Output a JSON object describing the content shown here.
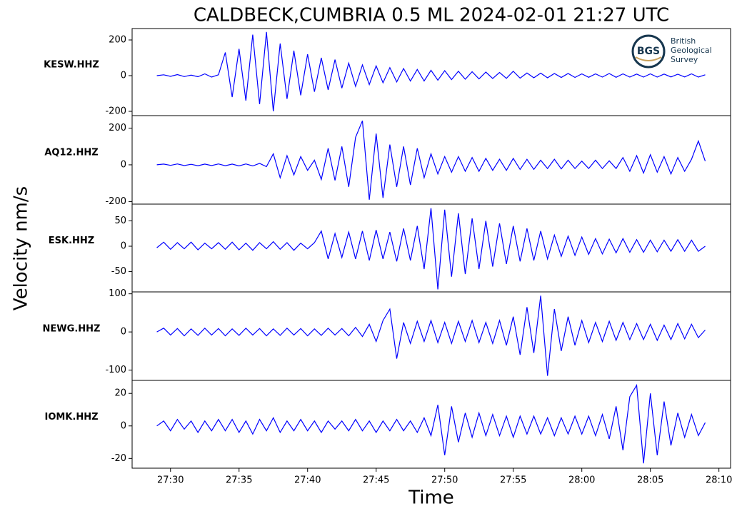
{
  "chart_data": {
    "type": "line",
    "title": "CALDBECK,CUMBRIA 0.5 ML   2024-02-01 21:27 UTC",
    "xlabel": "Time",
    "ylabel": "Velocity nm/s",
    "xlim": [
      27.2,
      70.85
    ],
    "xticks": [
      {
        "value": 30,
        "label": "27:30"
      },
      {
        "value": 35,
        "label": "27:35"
      },
      {
        "value": 40,
        "label": "27:40"
      },
      {
        "value": 45,
        "label": "27:45"
      },
      {
        "value": 50,
        "label": "27:50"
      },
      {
        "value": 55,
        "label": "27:55"
      },
      {
        "value": 60,
        "label": "28:00"
      },
      {
        "value": 65,
        "label": "28:05"
      },
      {
        "value": 70,
        "label": "28:10"
      }
    ],
    "x": [
      29,
      29.5,
      30,
      30.5,
      31,
      31.5,
      32,
      32.5,
      33,
      33.5,
      34,
      34.5,
      35,
      35.5,
      36,
      36.5,
      37,
      37.5,
      38,
      38.5,
      39,
      39.5,
      40,
      40.5,
      41,
      41.5,
      42,
      42.5,
      43,
      43.5,
      44,
      44.5,
      45,
      45.5,
      46,
      46.5,
      47,
      47.5,
      48,
      48.5,
      49,
      49.5,
      50,
      50.5,
      51,
      51.5,
      52,
      52.5,
      53,
      53.5,
      54,
      54.5,
      55,
      55.5,
      56,
      56.5,
      57,
      57.5,
      58,
      58.5,
      59,
      59.5,
      60,
      60.5,
      61,
      61.5,
      62,
      62.5,
      63,
      63.5,
      64,
      64.5,
      65,
      65.5,
      66,
      66.5,
      67,
      67.5,
      68,
      68.5,
      69
    ],
    "series": [
      {
        "name": "KESW.HHZ",
        "color": "#0000ff",
        "ylim": [
          -224,
          264
        ],
        "yticks": [
          -200,
          0,
          200
        ],
        "values": [
          0,
          5,
          -4,
          6,
          -5,
          3,
          -6,
          10,
          -8,
          5,
          130,
          -120,
          150,
          -140,
          230,
          -160,
          245,
          -200,
          180,
          -130,
          140,
          -110,
          120,
          -90,
          100,
          -80,
          90,
          -70,
          70,
          -60,
          60,
          -50,
          55,
          -40,
          45,
          -35,
          40,
          -30,
          35,
          -30,
          30,
          -25,
          28,
          -22,
          25,
          -20,
          22,
          -18,
          20,
          -16,
          18,
          -15,
          25,
          -14,
          15,
          -12,
          14,
          -12,
          12,
          -10,
          12,
          -10,
          10,
          -9,
          10,
          -8,
          12,
          -9,
          10,
          -8,
          9,
          -8,
          10,
          -8,
          9,
          -7,
          8,
          -7,
          10,
          -8,
          5
        ]
      },
      {
        "name": "AQ12.HHZ",
        "color": "#0000ff",
        "ylim": [
          -214,
          268
        ],
        "yticks": [
          -200,
          0,
          200
        ],
        "values": [
          0,
          4,
          -3,
          5,
          -4,
          3,
          -5,
          4,
          -4,
          5,
          -5,
          4,
          -6,
          5,
          -6,
          8,
          -10,
          60,
          -70,
          50,
          -55,
          45,
          -30,
          25,
          -80,
          90,
          -85,
          100,
          -120,
          150,
          240,
          -190,
          170,
          -180,
          110,
          -120,
          100,
          -110,
          90,
          -70,
          60,
          -50,
          45,
          -40,
          45,
          -35,
          40,
          -35,
          35,
          -30,
          30,
          -30,
          35,
          -25,
          30,
          -25,
          25,
          -20,
          30,
          -22,
          25,
          -20,
          20,
          -20,
          25,
          -20,
          22,
          -20,
          40,
          -35,
          50,
          -45,
          55,
          -40,
          45,
          -50,
          40,
          -35,
          30,
          130,
          20
        ]
      },
      {
        "name": "ESK.HHZ",
        "color": "#0000ff",
        "ylim": [
          -90,
          83
        ],
        "yticks": [
          -50,
          0,
          50
        ],
        "values": [
          -3,
          8,
          -6,
          7,
          -5,
          8,
          -7,
          6,
          -5,
          7,
          -6,
          8,
          -7,
          6,
          -8,
          7,
          -5,
          9,
          -6,
          7,
          -8,
          6,
          -5,
          7,
          30,
          -25,
          25,
          -22,
          28,
          -25,
          30,
          -28,
          32,
          -25,
          28,
          -30,
          35,
          -28,
          40,
          -45,
          75,
          -85,
          72,
          -60,
          65,
          -55,
          55,
          -45,
          50,
          -40,
          45,
          -35,
          40,
          -30,
          35,
          -28,
          30,
          -25,
          22,
          -20,
          20,
          -18,
          18,
          -16,
          15,
          -15,
          14,
          -13,
          15,
          -12,
          13,
          -12,
          12,
          -11,
          12,
          -10,
          13,
          -10,
          12,
          -10,
          0
        ]
      },
      {
        "name": "NEWG.HHZ",
        "color": "#0000ff",
        "ylim": [
          -127,
          105
        ],
        "yticks": [
          -100,
          0,
          100
        ],
        "values": [
          0,
          10,
          -8,
          9,
          -10,
          8,
          -9,
          10,
          -8,
          9,
          -10,
          8,
          -9,
          10,
          -8,
          9,
          -10,
          8,
          -9,
          10,
          -8,
          9,
          -10,
          8,
          -9,
          10,
          -8,
          9,
          -10,
          12,
          -12,
          20,
          -25,
          30,
          60,
          -70,
          25,
          -30,
          28,
          -25,
          30,
          -28,
          25,
          -30,
          28,
          -25,
          30,
          -28,
          25,
          -30,
          30,
          -35,
          40,
          -60,
          65,
          -55,
          95,
          -115,
          60,
          -50,
          40,
          -35,
          30,
          -28,
          25,
          -25,
          28,
          -22,
          25,
          -20,
          22,
          -20,
          20,
          -22,
          18,
          -20,
          22,
          -18,
          20,
          -15,
          5
        ]
      },
      {
        "name": "IOMK.HHZ",
        "color": "#0000ff",
        "ylim": [
          -26,
          28
        ],
        "yticks": [
          -20,
          0,
          20
        ],
        "values": [
          0,
          3,
          -3,
          4,
          -2,
          3,
          -4,
          3,
          -3,
          4,
          -3,
          4,
          -4,
          3,
          -5,
          4,
          -3,
          5,
          -4,
          3,
          -3,
          4,
          -3,
          3,
          -4,
          3,
          -2,
          3,
          -3,
          4,
          -3,
          3,
          -4,
          3,
          -3,
          4,
          -3,
          3,
          -4,
          5,
          -6,
          13,
          -18,
          12,
          -10,
          8,
          -7,
          8,
          -6,
          7,
          -6,
          6,
          -7,
          6,
          -5,
          6,
          -5,
          5,
          -6,
          5,
          -5,
          6,
          -5,
          6,
          -6,
          7,
          -8,
          12,
          -15,
          18,
          25,
          -23,
          20,
          -18,
          15,
          -12,
          8,
          -7,
          7,
          -6,
          2
        ]
      }
    ]
  },
  "logo": {
    "abbr": "BGS",
    "lines": [
      "British",
      "Geological",
      "Survey"
    ]
  }
}
